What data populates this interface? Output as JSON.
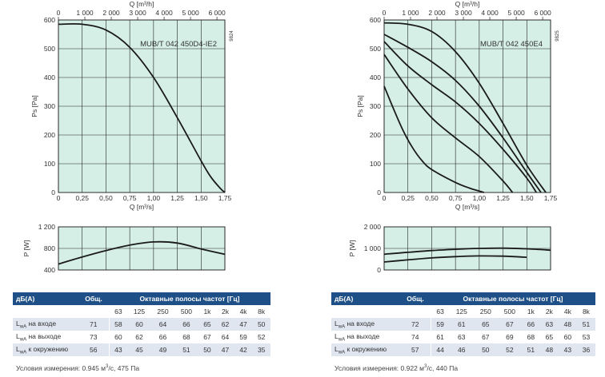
{
  "charts": [
    {
      "top_axis": {
        "label": "Q [m³/h]",
        "ticks": [
          "0",
          "1 000",
          "2 000",
          "3 000",
          "4 000",
          "5 000",
          "6 000"
        ]
      },
      "bottom_axis": {
        "label": "Q [m³/s]",
        "ticks": [
          "0",
          "0,25",
          "0,50",
          "0,75",
          "1,00",
          "1,25",
          "1,50",
          "1,75"
        ]
      },
      "y_axis": {
        "label": "Ps [Pa]",
        "ticks": [
          "0",
          "100",
          "200",
          "300",
          "400",
          "500",
          "600"
        ]
      },
      "model": "MUB/T 042 450D4-IE2",
      "code": "9824",
      "power_axis": {
        "label": "P [W]",
        "ticks": [
          "400",
          "800",
          "1 200"
        ]
      }
    },
    {
      "top_axis": {
        "label": "Q [m³/h]",
        "ticks": [
          "0",
          "1 000",
          "2 000",
          "3 000",
          "4 000",
          "5 000",
          "6 000"
        ]
      },
      "bottom_axis": {
        "label": "Q [m³/s]",
        "ticks": [
          "0",
          "0,25",
          "0,50",
          "0,75",
          "1,00",
          "1,25",
          "1,50",
          "1,75"
        ]
      },
      "y_axis": {
        "label": "Ps [Pa]",
        "ticks": [
          "0",
          "100",
          "200",
          "300",
          "400",
          "500",
          "600"
        ]
      },
      "model": "MUB/T 042 450E4",
      "code": "9825",
      "power_axis": {
        "label": "P [W]",
        "ticks": [
          "0",
          "1 000",
          "2 000"
        ]
      }
    }
  ],
  "chart_data": [
    {
      "type": "line",
      "xlabel": "Q [m³/s]",
      "ylabel": "Ps [Pa]",
      "xlim": [
        0,
        1.75
      ],
      "ylim": [
        0,
        600
      ],
      "series": [
        {
          "x": [
            0,
            0.25,
            0.5,
            0.75,
            1.0,
            1.25,
            1.5,
            1.6,
            1.7,
            1.75
          ],
          "values": [
            585,
            585,
            565,
            505,
            400,
            260,
            110,
            55,
            15,
            0
          ]
        }
      ]
    },
    {
      "type": "line",
      "xlabel": "Q [m³/s]",
      "ylabel": "P [W]",
      "xlim": [
        0,
        1.75
      ],
      "ylim": [
        400,
        1200
      ],
      "series": [
        {
          "x": [
            0,
            0.25,
            0.5,
            0.75,
            1.0,
            1.25,
            1.5,
            1.75
          ],
          "values": [
            510,
            640,
            760,
            860,
            920,
            900,
            790,
            690
          ]
        }
      ]
    },
    {
      "type": "line",
      "xlabel": "Q [m³/s]",
      "ylabel": "Ps [Pa]",
      "xlim": [
        0,
        1.75
      ],
      "ylim": [
        0,
        600
      ],
      "series": [
        {
          "x": [
            0,
            0.25,
            0.5,
            0.75,
            1.0,
            1.25,
            1.5,
            1.7
          ],
          "values": [
            590,
            585,
            560,
            490,
            380,
            240,
            95,
            0
          ]
        },
        {
          "x": [
            0,
            0.25,
            0.5,
            0.75,
            1.0,
            1.25,
            1.5,
            1.65
          ],
          "values": [
            550,
            505,
            455,
            390,
            300,
            190,
            70,
            0
          ]
        },
        {
          "x": [
            0,
            0.25,
            0.5,
            0.75,
            1.0,
            1.25,
            1.5,
            1.6
          ],
          "values": [
            525,
            440,
            375,
            315,
            240,
            150,
            50,
            0
          ]
        },
        {
          "x": [
            0,
            0.25,
            0.5,
            0.75,
            1.0,
            1.25,
            1.35
          ],
          "values": [
            480,
            360,
            260,
            190,
            125,
            40,
            0
          ]
        },
        {
          "x": [
            0,
            0.1,
            0.2,
            0.3,
            0.4,
            0.5,
            0.75,
            0.9,
            1.0,
            1.05
          ],
          "values": [
            370,
            290,
            215,
            155,
            110,
            80,
            35,
            15,
            5,
            0
          ]
        }
      ]
    },
    {
      "type": "line",
      "xlabel": "Q [m³/s]",
      "ylabel": "P [W]",
      "xlim": [
        0,
        1.75
      ],
      "ylim": [
        0,
        2000
      ],
      "series": [
        {
          "x": [
            0,
            0.25,
            0.5,
            0.75,
            1.0,
            1.25,
            1.5,
            1.75
          ],
          "values": [
            730,
            820,
            900,
            960,
            1000,
            1010,
            980,
            920
          ]
        },
        {
          "x": [
            0,
            0.25,
            0.5,
            0.75,
            1.0,
            1.25,
            1.5
          ],
          "values": [
            370,
            470,
            560,
            620,
            650,
            640,
            590
          ]
        }
      ]
    }
  ],
  "tables": [
    {
      "header": {
        "db": "дБ(А)",
        "total": "Общ.",
        "bands": "Октавные полосы частот [Гц]"
      },
      "freqs": [
        "63",
        "125",
        "250",
        "500",
        "1k",
        "2k",
        "4k",
        "8k"
      ],
      "rows": [
        {
          "label": "LwA на входе",
          "total": "71",
          "values": [
            "58",
            "60",
            "64",
            "66",
            "65",
            "62",
            "47",
            "50"
          ]
        },
        {
          "label": "LwA на выходе",
          "total": "73",
          "values": [
            "60",
            "62",
            "66",
            "68",
            "67",
            "64",
            "59",
            "52"
          ]
        },
        {
          "label": "LwA к окружению",
          "total": "56",
          "values": [
            "43",
            "45",
            "49",
            "51",
            "50",
            "47",
            "42",
            "35"
          ]
        }
      ],
      "condition": "Условия измерения: 0.945 м³/с, 475 Па"
    },
    {
      "header": {
        "db": "дБ(А)",
        "total": "Общ.",
        "bands": "Октавные полосы частот [Гц]"
      },
      "freqs": [
        "63",
        "125",
        "250",
        "500",
        "1k",
        "2k",
        "4k",
        "8k"
      ],
      "rows": [
        {
          "label": "LwA на входе",
          "total": "72",
          "values": [
            "59",
            "61",
            "65",
            "67",
            "66",
            "63",
            "48",
            "51"
          ]
        },
        {
          "label": "LwA на выходе",
          "total": "74",
          "values": [
            "61",
            "63",
            "67",
            "69",
            "68",
            "65",
            "60",
            "53"
          ]
        },
        {
          "label": "LwA к окружению",
          "total": "57",
          "values": [
            "44",
            "46",
            "50",
            "52",
            "51",
            "48",
            "43",
            "36"
          ]
        }
      ],
      "condition": "Условия измерения: 0.922 м³/с, 440 Па"
    }
  ],
  "colors": {
    "plot_bg": "#d5eee6",
    "header_bg": "#1e4f86",
    "row_alt": "#dfe6f0",
    "curve": "#1a1a1a"
  }
}
